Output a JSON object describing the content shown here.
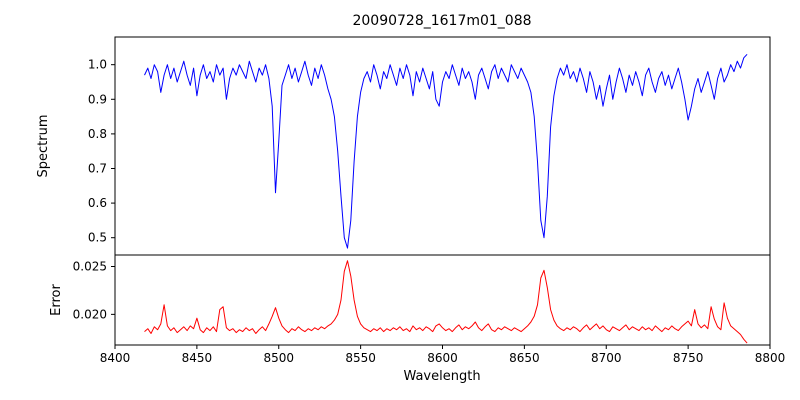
{
  "chart_data": {
    "type": "line",
    "title": "20090728_1617m01_088",
    "xlabel": "Wavelength",
    "xlim": [
      8400,
      8800
    ],
    "xticks": [
      8400,
      8450,
      8500,
      8550,
      8600,
      8650,
      8700,
      8750,
      8800
    ],
    "xtick_labels": [
      "8400",
      "8450",
      "8500",
      "8550",
      "8600",
      "8650",
      "8700",
      "8750",
      "8800"
    ],
    "x_start": 8418,
    "x_step": 2,
    "grid": false,
    "legend": "none",
    "panels": [
      {
        "name": "spectrum",
        "ylabel": "Spectrum",
        "color": "#0000ff",
        "ylim": [
          0.45,
          1.08
        ],
        "yticks": [
          0.5,
          0.6,
          0.7,
          0.8,
          0.9,
          1.0
        ],
        "ytick_labels": [
          "0.5",
          "0.6",
          "0.7",
          "0.8",
          "0.9",
          "1.0"
        ],
        "absorption_line_centers": [
          8498,
          8542,
          8662,
          8750
        ],
        "absorption_line_depths": [
          0.63,
          0.47,
          0.5,
          0.84
        ],
        "y": [
          0.97,
          0.99,
          0.96,
          1.0,
          0.98,
          0.92,
          0.97,
          1.0,
          0.96,
          0.99,
          0.95,
          0.98,
          1.01,
          0.97,
          0.94,
          0.99,
          0.91,
          0.97,
          1.0,
          0.96,
          0.98,
          0.95,
          1.0,
          0.97,
          0.99,
          0.9,
          0.96,
          0.99,
          0.97,
          1.0,
          0.98,
          0.96,
          1.01,
          0.98,
          0.95,
          0.99,
          0.97,
          1.0,
          0.96,
          0.88,
          0.63,
          0.78,
          0.94,
          0.97,
          1.0,
          0.96,
          0.99,
          0.95,
          0.98,
          1.01,
          0.97,
          0.94,
          0.99,
          0.96,
          1.0,
          0.97,
          0.93,
          0.9,
          0.85,
          0.75,
          0.62,
          0.5,
          0.47,
          0.55,
          0.72,
          0.85,
          0.92,
          0.96,
          0.98,
          0.95,
          1.0,
          0.97,
          0.93,
          0.98,
          0.96,
          1.0,
          0.97,
          0.94,
          0.99,
          0.96,
          1.0,
          0.97,
          0.91,
          0.98,
          0.95,
          0.99,
          0.96,
          0.93,
          0.98,
          0.9,
          0.88,
          0.95,
          0.98,
          0.96,
          1.0,
          0.97,
          0.94,
          0.99,
          0.96,
          0.98,
          0.95,
          0.9,
          0.97,
          0.99,
          0.96,
          0.93,
          0.98,
          1.0,
          0.96,
          0.99,
          0.97,
          0.95,
          1.0,
          0.98,
          0.96,
          0.99,
          0.97,
          0.95,
          0.92,
          0.85,
          0.72,
          0.55,
          0.5,
          0.62,
          0.82,
          0.91,
          0.96,
          0.99,
          0.97,
          1.0,
          0.96,
          0.98,
          0.95,
          0.99,
          0.96,
          0.92,
          0.98,
          0.95,
          0.9,
          0.94,
          0.88,
          0.93,
          0.97,
          0.9,
          0.95,
          0.99,
          0.96,
          0.92,
          0.97,
          0.94,
          0.98,
          0.95,
          0.91,
          0.97,
          0.99,
          0.95,
          0.92,
          0.96,
          0.98,
          0.94,
          0.97,
          0.93,
          0.96,
          0.99,
          0.95,
          0.9,
          0.84,
          0.88,
          0.93,
          0.96,
          0.92,
          0.95,
          0.98,
          0.94,
          0.9,
          0.96,
          0.99,
          0.95,
          0.97,
          1.0,
          0.98,
          1.01,
          0.99,
          1.02,
          1.03
        ]
      },
      {
        "name": "error",
        "ylabel": "Error",
        "color": "#ff0000",
        "ylim": [
          0.0168,
          0.0262
        ],
        "yticks": [
          0.02,
          0.025
        ],
        "ytick_labels": [
          "0.020",
          "0.025"
        ],
        "peak_centers": [
          8430,
          8498,
          8542,
          8662,
          8764,
          8772
        ],
        "peak_heights": [
          0.021,
          0.0207,
          0.0256,
          0.0246,
          0.0208,
          0.0212
        ],
        "y": [
          0.0182,
          0.0185,
          0.018,
          0.0187,
          0.0184,
          0.019,
          0.021,
          0.0188,
          0.0183,
          0.0186,
          0.0181,
          0.0184,
          0.0187,
          0.0183,
          0.0188,
          0.0185,
          0.0196,
          0.0184,
          0.0181,
          0.0186,
          0.0183,
          0.0187,
          0.0182,
          0.0205,
          0.0208,
          0.0186,
          0.0183,
          0.0185,
          0.0181,
          0.0184,
          0.0182,
          0.0186,
          0.0183,
          0.0185,
          0.018,
          0.0184,
          0.0187,
          0.0183,
          0.019,
          0.0198,
          0.0207,
          0.0196,
          0.0188,
          0.0184,
          0.0181,
          0.0185,
          0.0183,
          0.0187,
          0.0184,
          0.0182,
          0.0185,
          0.0183,
          0.0186,
          0.0184,
          0.0187,
          0.0185,
          0.0188,
          0.019,
          0.0194,
          0.02,
          0.0215,
          0.0245,
          0.0256,
          0.024,
          0.0215,
          0.0198,
          0.019,
          0.0186,
          0.0184,
          0.0182,
          0.0185,
          0.0183,
          0.0186,
          0.0182,
          0.0185,
          0.0183,
          0.0186,
          0.0184,
          0.0187,
          0.0183,
          0.0185,
          0.0182,
          0.0188,
          0.0184,
          0.0186,
          0.0183,
          0.0187,
          0.0185,
          0.0182,
          0.0188,
          0.019,
          0.0186,
          0.0183,
          0.0185,
          0.0182,
          0.0186,
          0.0189,
          0.0184,
          0.0187,
          0.0185,
          0.0188,
          0.0192,
          0.0186,
          0.0183,
          0.0187,
          0.019,
          0.0184,
          0.0182,
          0.0186,
          0.0184,
          0.0187,
          0.0185,
          0.0183,
          0.0186,
          0.0184,
          0.0182,
          0.0185,
          0.0188,
          0.0192,
          0.0198,
          0.021,
          0.0238,
          0.0246,
          0.0228,
          0.0205,
          0.0194,
          0.0188,
          0.0185,
          0.0183,
          0.0186,
          0.0184,
          0.0187,
          0.0185,
          0.0182,
          0.0186,
          0.0189,
          0.0184,
          0.0187,
          0.019,
          0.0185,
          0.0188,
          0.0184,
          0.0182,
          0.0187,
          0.0185,
          0.0183,
          0.0186,
          0.0189,
          0.0184,
          0.0187,
          0.0185,
          0.0183,
          0.0187,
          0.0184,
          0.0186,
          0.0183,
          0.0188,
          0.0185,
          0.0182,
          0.0186,
          0.0184,
          0.0188,
          0.0185,
          0.0183,
          0.0187,
          0.019,
          0.0193,
          0.0188,
          0.0205,
          0.019,
          0.0186,
          0.0189,
          0.0185,
          0.0208,
          0.0195,
          0.0187,
          0.0184,
          0.0212,
          0.0196,
          0.0188,
          0.0185,
          0.0182,
          0.0179,
          0.0174,
          0.017
        ]
      }
    ]
  }
}
